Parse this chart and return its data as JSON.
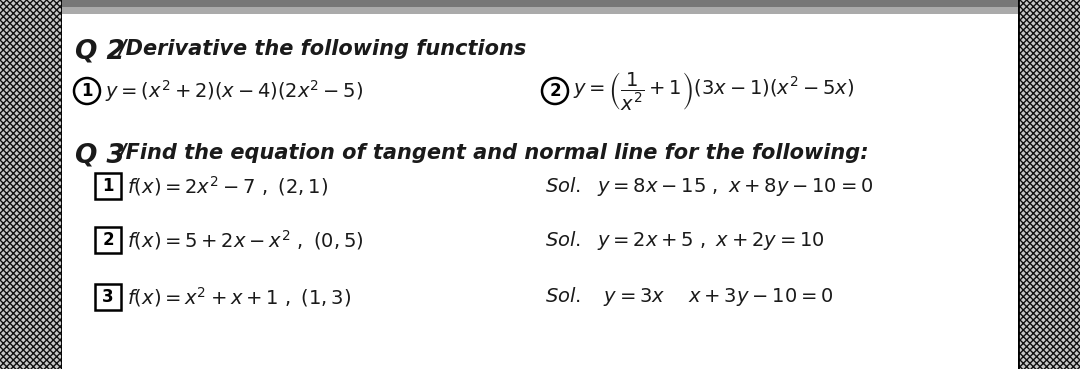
{
  "bg_color": "#ffffff",
  "hatch_color": "#1a1a1a",
  "border_color": "#000000",
  "text_color": "#1a1a1a",
  "figsize": [
    10.8,
    3.69
  ],
  "dpi": 100,
  "q2_title_bold": "Q 2",
  "q2_title_rest": "/Derivative the following functions",
  "q2_item1_num": "1",
  "q2_item1_text": "$y=(x^2+2)(x-4)(2x^2-5)$",
  "q2_item2_num": "2",
  "q2_item2_text": "$y=\\left(\\dfrac{1}{x^2}+1\\right)(3x-1)(x^2-5x)$",
  "q3_title_bold": "Q 3",
  "q3_title_rest": "/Find the equation of tangent and normal line for the following:",
  "q3_rows": [
    {
      "num": "1",
      "prob": "$f(x)=2x^2-7\\ ,\\ (2,1)$",
      "sol": "$Sol.\\ \\ y=8x-15\\ ,\\ x+8y-10=0$"
    },
    {
      "num": "2",
      "prob": "$f(x)=5+2x-x^2\\ ,\\ (0,5)$",
      "sol": "$Sol.\\ \\ y=2x+5\\ ,\\ x+2y=10$"
    },
    {
      "num": "3",
      "prob": "$f(x)=x^2+x+1\\ ,\\ (1,3)$",
      "sol": "$Sol.\\ \\ \\ y=3x\\ \\ \\ \\ x+3y-10=0$"
    }
  ]
}
